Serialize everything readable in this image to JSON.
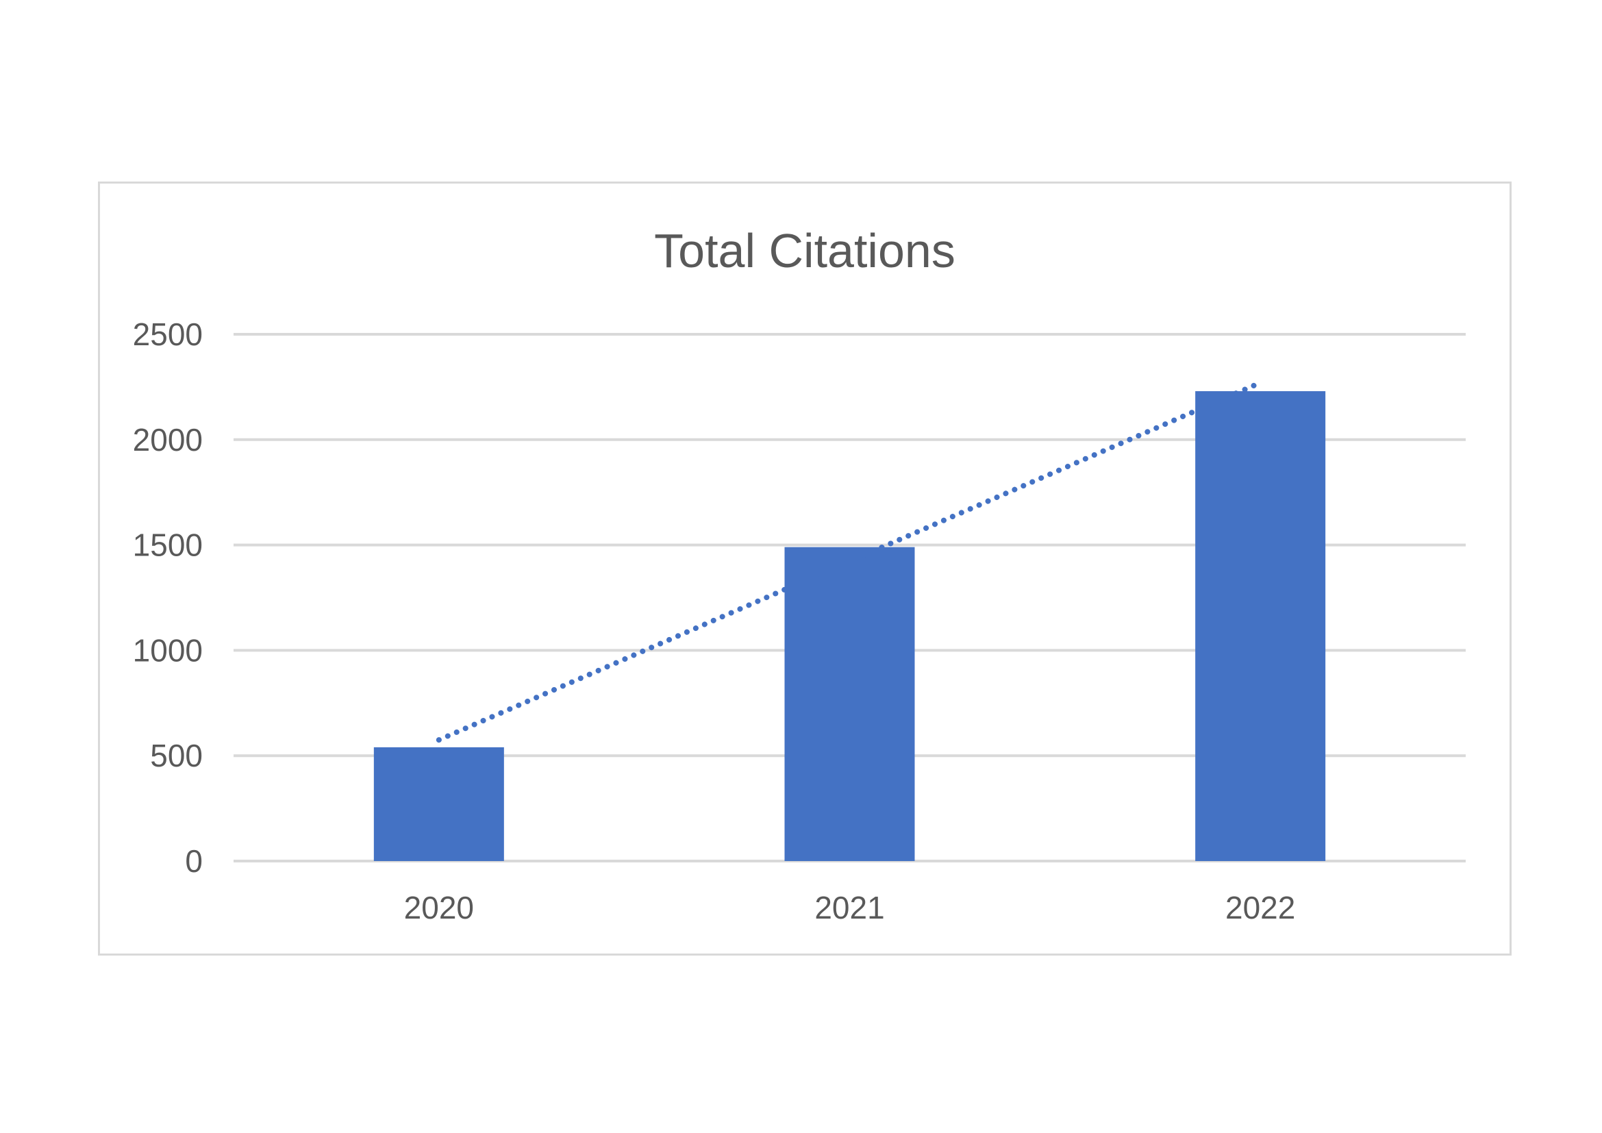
{
  "chart_data": {
    "type": "bar",
    "title": "Total Citations",
    "categories": [
      "2020",
      "2021",
      "2022"
    ],
    "values": [
      540,
      1490,
      2230
    ],
    "xlabel": "",
    "ylabel": "",
    "ylim": [
      0,
      2500
    ],
    "yticks": [
      0,
      500,
      1000,
      1500,
      2000,
      2500
    ],
    "grid": true,
    "legend": "none",
    "trendline": {
      "type": "linear",
      "style": "dotted",
      "start": 575,
      "end": 2270
    },
    "colors": {
      "bar": "#4472c4",
      "trendline": "#4472c4",
      "grid": "#d9d9d9",
      "text": "#595959"
    }
  }
}
